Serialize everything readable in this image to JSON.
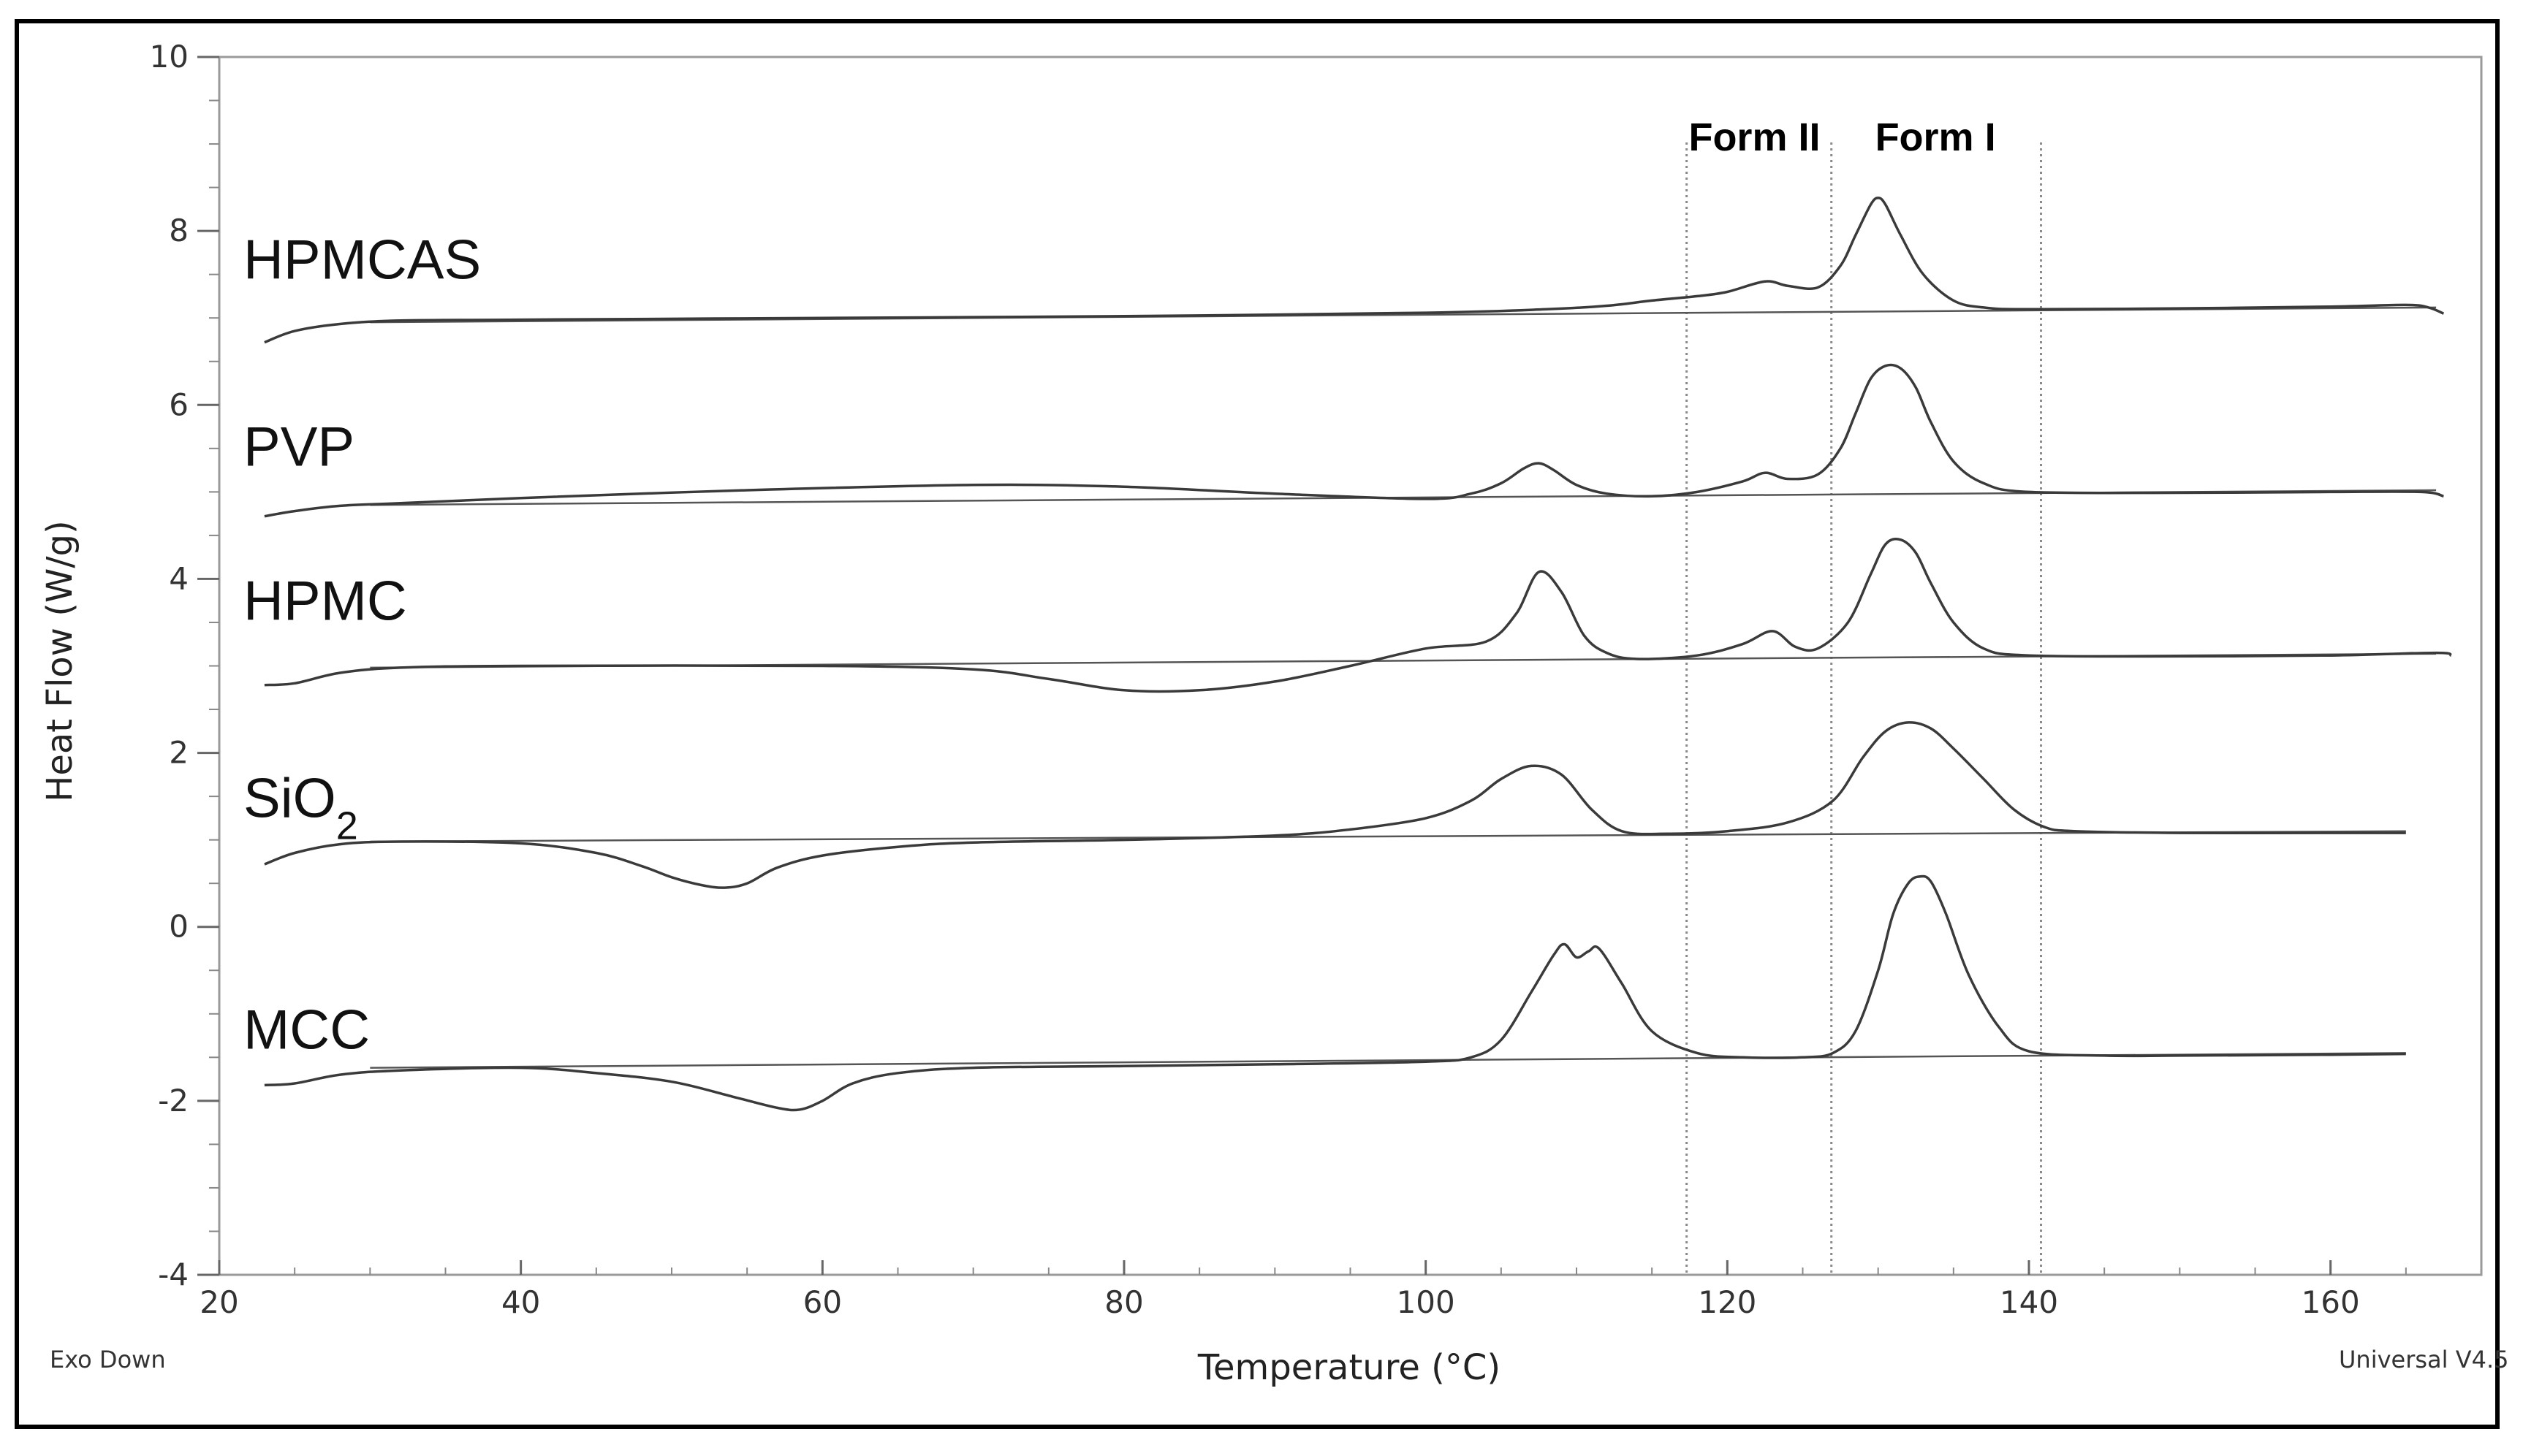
{
  "chart_data": {
    "type": "line",
    "title": "",
    "xlabel": "Temperature (°C)",
    "ylabel": "Heat Flow (W/g)",
    "xlim": [
      20,
      170
    ],
    "ylim": [
      -4,
      10
    ],
    "xticks": [
      "20",
      "40",
      "60",
      "80",
      "100",
      "120",
      "140",
      "160"
    ],
    "yticks": [
      "-4",
      "-2",
      "0",
      "2",
      "4",
      "6",
      "8",
      "10"
    ],
    "corner_left": "Exo Down",
    "corner_right": "Universal V4.5",
    "vertical_lines": [
      {
        "label": "Form II",
        "x": 117.3
      },
      {
        "label": "",
        "x": 126.9
      },
      {
        "label": "Form I",
        "x": 140.8
      }
    ],
    "form_labels": [
      {
        "text": "Form II",
        "x": 121.8
      },
      {
        "text": "Form I",
        "x": 133.8
      }
    ],
    "series": [
      {
        "name": "HPMCAS",
        "label_main": "HPMCAS",
        "label_sub": "",
        "x": [
          23,
          25,
          28,
          32,
          40,
          60,
          80,
          100,
          108,
          112,
          115,
          118,
          120,
          122.5,
          124,
          126,
          127.5,
          128.5,
          129.5,
          130,
          130.5,
          131.5,
          133,
          135,
          137,
          140,
          150,
          160,
          165,
          166.5,
          167.5
        ],
        "y": [
          6.72,
          6.85,
          6.93,
          6.97,
          6.98,
          7.0,
          7.02,
          7.06,
          7.1,
          7.14,
          7.2,
          7.25,
          7.3,
          7.42,
          7.37,
          7.35,
          7.6,
          7.95,
          8.3,
          8.38,
          8.3,
          7.95,
          7.5,
          7.2,
          7.12,
          7.1,
          7.11,
          7.13,
          7.15,
          7.12,
          7.05
        ],
        "baseline_x": [
          30,
          167
        ],
        "baseline_y": [
          6.95,
          7.12
        ]
      },
      {
        "name": "PVP",
        "label_main": "PVP",
        "label_sub": "",
        "x": [
          23,
          25,
          28,
          32,
          40,
          55,
          70,
          80,
          90,
          100,
          103,
          105,
          106.5,
          107.5,
          108.5,
          110,
          112,
          115,
          118,
          121,
          122.5,
          124,
          126,
          127.5,
          128.5,
          129.5,
          130.5,
          131.5,
          132.5,
          133.5,
          135,
          137,
          140,
          150,
          160,
          166,
          167.5
        ],
        "y": [
          4.72,
          4.78,
          4.84,
          4.87,
          4.93,
          5.02,
          5.08,
          5.06,
          4.98,
          4.92,
          4.98,
          5.1,
          5.27,
          5.33,
          5.25,
          5.08,
          4.98,
          4.95,
          5.0,
          5.12,
          5.22,
          5.15,
          5.2,
          5.5,
          5.9,
          6.3,
          6.45,
          6.42,
          6.2,
          5.8,
          5.35,
          5.1,
          5.0,
          4.99,
          5.0,
          5.0,
          4.95
        ],
        "baseline_x": [
          30,
          167
        ],
        "baseline_y": [
          4.85,
          5.02
        ]
      },
      {
        "name": "HPMC",
        "label_main": "HPMC",
        "label_sub": "",
        "x": [
          23,
          25,
          28,
          32,
          40,
          60,
          70,
          75,
          80,
          85,
          90,
          95,
          100,
          104,
          106,
          107.5,
          109,
          110.5,
          112,
          114,
          118,
          121,
          123,
          124.5,
          126,
          128,
          129.5,
          130.5,
          131.5,
          132.5,
          133.5,
          135,
          137,
          140,
          150,
          160,
          167,
          168
        ],
        "y": [
          2.78,
          2.8,
          2.92,
          2.98,
          3.0,
          3.0,
          2.96,
          2.85,
          2.72,
          2.72,
          2.82,
          3.0,
          3.2,
          3.28,
          3.6,
          4.08,
          3.85,
          3.35,
          3.15,
          3.08,
          3.12,
          3.25,
          3.4,
          3.22,
          3.2,
          3.5,
          4.05,
          4.4,
          4.45,
          4.3,
          3.95,
          3.5,
          3.2,
          3.12,
          3.11,
          3.12,
          3.15,
          3.12
        ],
        "baseline_x": [
          30,
          167
        ],
        "baseline_y": [
          2.98,
          3.14
        ]
      },
      {
        "name": "SiO2",
        "label_main": "SiO",
        "label_sub": "2",
        "x": [
          23,
          25,
          28,
          32,
          40,
          45,
          48,
          50,
          52,
          53.5,
          55,
          57,
          60,
          65,
          70,
          80,
          90,
          95,
          100,
          103,
          105,
          107,
          109,
          111,
          113,
          116,
          120,
          124,
          127,
          129,
          130.5,
          132,
          133.5,
          135,
          137,
          139,
          141,
          143,
          150,
          160,
          165
        ],
        "y": [
          0.72,
          0.85,
          0.95,
          0.98,
          0.96,
          0.85,
          0.7,
          0.57,
          0.48,
          0.45,
          0.5,
          0.68,
          0.82,
          0.92,
          0.97,
          1.0,
          1.05,
          1.12,
          1.25,
          1.45,
          1.7,
          1.85,
          1.75,
          1.35,
          1.1,
          1.07,
          1.1,
          1.2,
          1.45,
          1.95,
          2.25,
          2.35,
          2.28,
          2.05,
          1.7,
          1.35,
          1.15,
          1.1,
          1.08,
          1.08,
          1.08
        ],
        "baseline_x": [
          30,
          165
        ],
        "baseline_y": [
          0.98,
          1.1
        ]
      },
      {
        "name": "MCC",
        "label_main": "MCC",
        "label_sub": "",
        "x": [
          23,
          25,
          28,
          32,
          40,
          45,
          50,
          54,
          57,
          58.5,
          60,
          62,
          65,
          70,
          80,
          90,
          100,
          103,
          105,
          107,
          108.5,
          109.2,
          110,
          110.8,
          111.5,
          113,
          115,
          118,
          121,
          125,
          127,
          128.5,
          130,
          131,
          132,
          132.8,
          133.5,
          134.5,
          136,
          138,
          140,
          145,
          150,
          160,
          165
        ],
        "y": [
          -1.82,
          -1.8,
          -1.7,
          -1.65,
          -1.62,
          -1.68,
          -1.78,
          -1.95,
          -2.08,
          -2.1,
          -2.0,
          -1.8,
          -1.68,
          -1.62,
          -1.6,
          -1.58,
          -1.55,
          -1.5,
          -1.3,
          -0.75,
          -0.32,
          -0.2,
          -0.35,
          -0.28,
          -0.25,
          -0.65,
          -1.2,
          -1.45,
          -1.5,
          -1.5,
          -1.45,
          -1.2,
          -0.5,
          0.15,
          0.5,
          0.58,
          0.52,
          0.15,
          -0.55,
          -1.15,
          -1.43,
          -1.48,
          -1.48,
          -1.47,
          -1.46
        ],
        "baseline_x": [
          30,
          165
        ],
        "baseline_y": [
          -1.62,
          -1.45
        ]
      }
    ]
  }
}
